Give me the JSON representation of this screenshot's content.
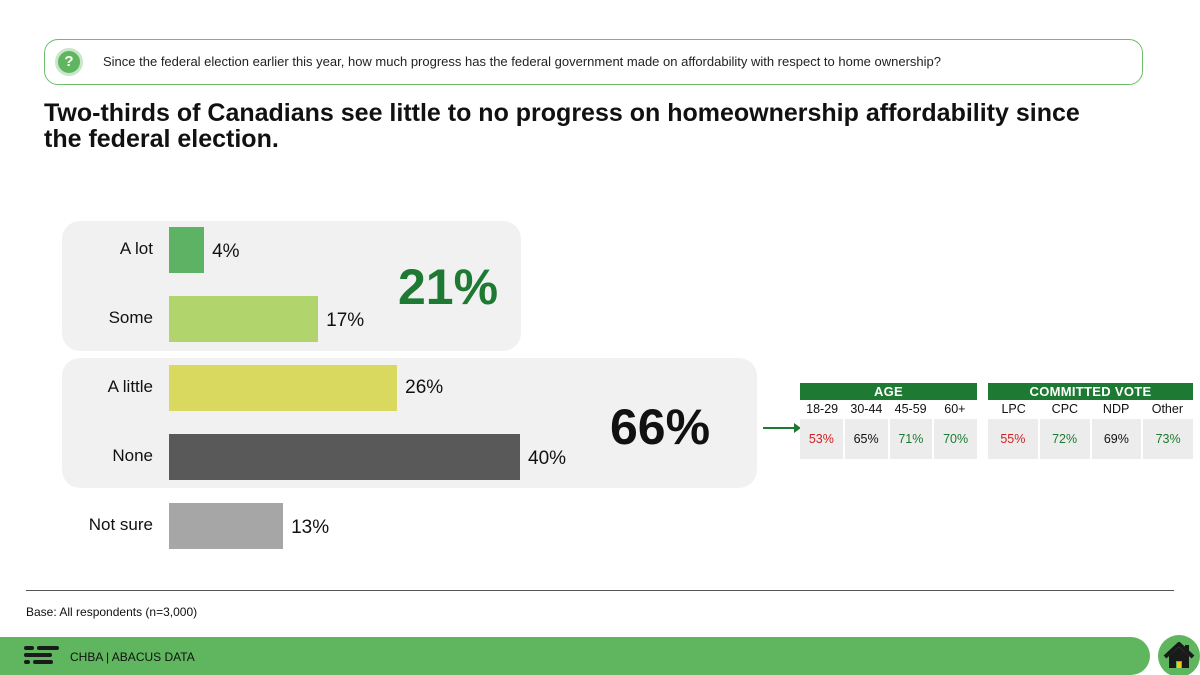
{
  "question": {
    "icon": "question-icon",
    "text": "Since the federal election earlier this year, how much progress has the federal government made on affordability with respect to home ownership?"
  },
  "headline": "Two-thirds of Canadians see little to no progress on homeownership affordability since the federal election.",
  "chart_data": {
    "type": "bar",
    "orientation": "horizontal",
    "categories": [
      "A lot",
      "Some",
      "A little",
      "None",
      "Not sure"
    ],
    "values": [
      4,
      17,
      26,
      40,
      13
    ],
    "value_labels": [
      "4%",
      "17%",
      "26%",
      "40%",
      "13%"
    ],
    "bar_colors": [
      "#5db363",
      "#b1d56c",
      "#d8d95e",
      "#595959",
      "#a6a6a6"
    ],
    "xlim": [
      0,
      40
    ],
    "groups": [
      {
        "name": "progress",
        "categories": [
          "A lot",
          "Some"
        ],
        "total_label": "21%",
        "color": "#1e7a32"
      },
      {
        "name": "little-or-none",
        "categories": [
          "A little",
          "None"
        ],
        "total_label": "66%",
        "color": "#111111"
      }
    ]
  },
  "breakdown": {
    "age": {
      "title": "AGE",
      "columns": [
        "18-29",
        "30-44",
        "45-59",
        "60+"
      ],
      "values": [
        "53%",
        "65%",
        "71%",
        "70%"
      ],
      "colors": [
        "#d22020",
        "#111111",
        "#1e7a32",
        "#1e7a32"
      ]
    },
    "vote": {
      "title": "COMMITTED VOTE",
      "columns": [
        "LPC",
        "CPC",
        "NDP",
        "Other"
      ],
      "values": [
        "55%",
        "72%",
        "69%",
        "73%"
      ],
      "colors": [
        "#d22020",
        "#1e7a32",
        "#111111",
        "#1e7a32"
      ]
    }
  },
  "base_note": "Base: All respondents (n=3,000)",
  "footer": {
    "text": "CHBA  |  ABACUS DATA",
    "logo_icon": "abacus-logo-icon",
    "home_icon": "home-icon"
  }
}
